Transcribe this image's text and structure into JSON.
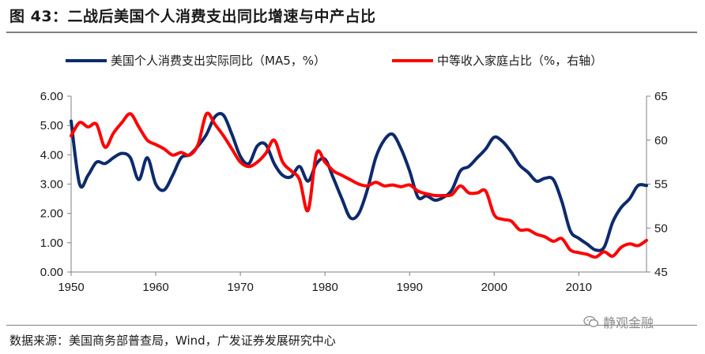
{
  "title": "图 43：二战后美国个人消费支出同比增速与中产占比",
  "source": "数据来源：美国商务部普查局，Wind，广发证券发展研究中心",
  "watermark": "静观金融",
  "colors": {
    "series1": "#0d2a6b",
    "series2": "#ff0000",
    "axis": "#808080",
    "text": "#1a1a1a"
  },
  "chart_data": {
    "type": "line",
    "xlim": [
      1950,
      2018
    ],
    "x_ticks": [
      "1950",
      "1960",
      "1970",
      "1980",
      "1990",
      "2000",
      "2010"
    ],
    "y_left": {
      "range": [
        0,
        6
      ],
      "ticks": [
        "0.00",
        "1.00",
        "2.00",
        "3.00",
        "4.00",
        "5.00",
        "6.00"
      ]
    },
    "y_right": {
      "range": [
        45,
        65
      ],
      "ticks": [
        "45",
        "50",
        "55",
        "60",
        "65"
      ]
    },
    "grid": false,
    "legend_position": "top",
    "series": [
      {
        "name": "美国个人消费支出实际同比（MA5，%）",
        "axis": "left",
        "x": [
          1950,
          1951,
          1952,
          1953,
          1954,
          1955,
          1956,
          1957,
          1958,
          1959,
          1960,
          1961,
          1962,
          1963,
          1964,
          1965,
          1966,
          1967,
          1968,
          1969,
          1970,
          1971,
          1972,
          1973,
          1974,
          1975,
          1976,
          1977,
          1978,
          1979,
          1980,
          1981,
          1982,
          1983,
          1984,
          1985,
          1986,
          1987,
          1988,
          1989,
          1990,
          1991,
          1992,
          1993,
          1994,
          1995,
          1996,
          1997,
          1998,
          1999,
          2000,
          2001,
          2002,
          2003,
          2004,
          2005,
          2006,
          2007,
          2008,
          2009,
          2010,
          2011,
          2012,
          2013,
          2014,
          2015,
          2016,
          2017,
          2018
        ],
        "y": [
          5.15,
          3.0,
          3.3,
          3.75,
          3.7,
          3.9,
          4.05,
          3.9,
          3.15,
          3.9,
          3.0,
          2.8,
          3.3,
          3.9,
          4.0,
          4.3,
          4.7,
          5.3,
          5.35,
          4.7,
          3.95,
          3.7,
          4.3,
          4.35,
          3.7,
          3.3,
          3.25,
          3.6,
          3.1,
          3.7,
          3.85,
          3.2,
          2.5,
          1.85,
          2.0,
          2.8,
          3.9,
          4.5,
          4.7,
          4.2,
          3.45,
          2.55,
          2.6,
          2.45,
          2.55,
          2.8,
          3.45,
          3.6,
          3.9,
          4.2,
          4.6,
          4.45,
          4.1,
          3.65,
          3.4,
          3.1,
          3.2,
          3.15,
          2.4,
          1.4,
          1.15,
          0.95,
          0.75,
          0.85,
          1.7,
          2.2,
          2.5,
          2.95,
          2.95
        ]
      },
      {
        "name": "中等收入家庭占比（%，右轴）",
        "axis": "right",
        "x": [
          1950,
          1951,
          1952,
          1953,
          1954,
          1955,
          1956,
          1957,
          1958,
          1959,
          1960,
          1961,
          1962,
          1963,
          1964,
          1965,
          1966,
          1967,
          1968,
          1969,
          1970,
          1971,
          1972,
          1973,
          1974,
          1975,
          1976,
          1977,
          1978,
          1979,
          1980,
          1981,
          1982,
          1983,
          1984,
          1985,
          1986,
          1987,
          1988,
          1989,
          1990,
          1991,
          1992,
          1993,
          1994,
          1995,
          1996,
          1997,
          1998,
          1999,
          2000,
          2001,
          2002,
          2003,
          2004,
          2005,
          2006,
          2007,
          2008,
          2009,
          2010,
          2011,
          2012,
          2013,
          2014,
          2015,
          2016,
          2017,
          2018
        ],
        "y": [
          60.5,
          62.0,
          61.5,
          61.8,
          59.2,
          60.8,
          62.0,
          63.0,
          61.5,
          60.0,
          59.5,
          59.0,
          58.3,
          58.6,
          58.3,
          59.5,
          63.0,
          61.8,
          60.5,
          59.0,
          57.5,
          57.0,
          57.5,
          58.5,
          60.0,
          57.5,
          56.5,
          55.5,
          52.0,
          58.5,
          57.5,
          56.5,
          56.0,
          55.5,
          55.0,
          54.8,
          55.2,
          54.8,
          54.9,
          54.7,
          54.9,
          54.2,
          53.9,
          53.7,
          53.7,
          53.8,
          54.8,
          54.0,
          54.0,
          54.2,
          51.5,
          51.0,
          50.8,
          49.8,
          49.8,
          49.3,
          49.0,
          48.5,
          48.8,
          47.5,
          47.2,
          47.0,
          46.7,
          47.3,
          46.8,
          47.8,
          48.2,
          48.0,
          48.6
        ]
      }
    ]
  }
}
